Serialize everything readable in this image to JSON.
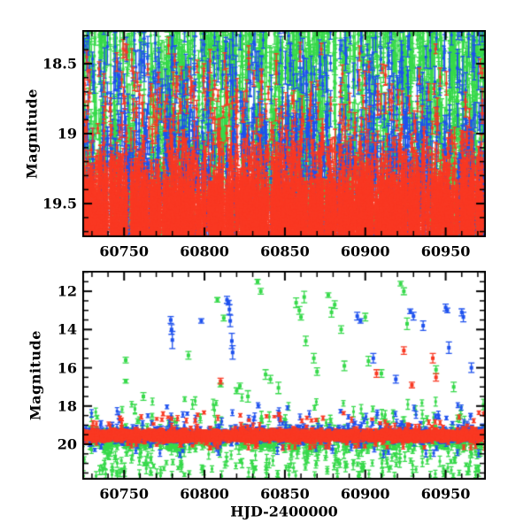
{
  "figure": {
    "background": "#ffffff",
    "frame_color": "#000000",
    "text_color": "#000000",
    "description": "Two-panel photometric light curve scatter plot; top panel is a zoom of the faint end of the bottom panel"
  },
  "chart_data": [
    {
      "type": "scatter",
      "panel": "top",
      "title": "",
      "xlabel": "",
      "ylabel": "Magnitude",
      "xlim": [
        60724,
        60975
      ],
      "ylim": [
        18.26,
        19.74
      ],
      "y_inverted": true,
      "grid": false,
      "legend": null,
      "x_ticks": [
        60750,
        60800,
        60850,
        60900,
        60950
      ],
      "x_minor_step": 10,
      "y_ticks": [
        18.5,
        19,
        19.5
      ],
      "y_minor_step": 0.1,
      "series": [
        {
          "name": "green-band",
          "color": "#36d94a",
          "generator": {
            "seed": 101,
            "n": 2600,
            "night_skip": 0.18,
            "mag_mean": 19.05,
            "mag_sigma": 0.38,
            "bright_frac": 0.3,
            "bright": [
              17.75,
              18.55
            ],
            "faint_frac": 0.05,
            "faint": [
              19.45,
              19.78
            ],
            "err": [
              0.05,
              0.16
            ]
          }
        },
        {
          "name": "blue-band",
          "color": "#1e51ee",
          "generator": {
            "seed": 202,
            "n": 1700,
            "night_skip": 0.3,
            "mag_mean": 19.28,
            "mag_sigma": 0.3,
            "bright_frac": 0.14,
            "bright": [
              17.9,
              18.7
            ],
            "faint_frac": 0.06,
            "faint": [
              19.5,
              19.78
            ],
            "err": [
              0.04,
              0.14
            ]
          }
        },
        {
          "name": "red-band",
          "color": "#f93822",
          "generator": {
            "seed": 303,
            "n": 6000,
            "night_skip": 0.1,
            "mag_mean": 19.58,
            "mag_sigma": 0.17,
            "bright_frac": 0.07,
            "bright": [
              18.35,
              19.25
            ],
            "faint_frac": 0,
            "faint": [
              0,
              0
            ],
            "err": [
              0.03,
              0.09
            ]
          }
        }
      ]
    },
    {
      "type": "scatter",
      "panel": "bottom",
      "title": "",
      "xlabel": "HJD-2400000",
      "ylabel": "Magnitude",
      "xlim": [
        60724,
        60975
      ],
      "ylim": [
        10.93,
        21.85
      ],
      "y_inverted": true,
      "grid": false,
      "legend": null,
      "x_ticks": [
        60750,
        60800,
        60850,
        60900,
        60950
      ],
      "x_minor_step": 10,
      "y_ticks": [
        12,
        14,
        16,
        18,
        20
      ],
      "y_minor_step": 0.5,
      "series": [
        {
          "name": "green-band",
          "color": "#36d94a",
          "generator": {
            "seed": 404,
            "n": 1300,
            "night_skip": 0.18,
            "mag_mean": 19.75,
            "mag_sigma": 0.27,
            "bright_frac": 0.055,
            "bright": [
              17.4,
              18.9
            ],
            "faint_frac": 0.14,
            "faint": [
              20.3,
              21.7
            ],
            "err": [
              0.08,
              0.28
            ]
          },
          "outliers": [
            [
              60751,
              15.6,
              0.15
            ],
            [
              60751,
              16.7,
              0.1
            ],
            [
              60762,
              17.5,
              0.2
            ],
            [
              60790,
              15.35,
              0.2
            ],
            [
              60808,
              12.45,
              0.12
            ],
            [
              60810,
              16.9,
              0.1
            ],
            [
              60812,
              13.4,
              0.15
            ],
            [
              60820,
              17.2,
              0.15
            ],
            [
              60822,
              16.95,
              0.15
            ],
            [
              60827,
              17.5,
              0.3
            ],
            [
              60833,
              11.5,
              0.12
            ],
            [
              60835,
              12.0,
              0.15
            ],
            [
              60838,
              16.35,
              0.25
            ],
            [
              60841,
              16.6,
              0.2
            ],
            [
              60846,
              17.05,
              0.3
            ],
            [
              60857,
              12.6,
              0.25
            ],
            [
              60859,
              13.0,
              0.2
            ],
            [
              60860,
              13.35,
              0.15
            ],
            [
              60862,
              12.3,
              0.3
            ],
            [
              60863,
              14.6,
              0.25
            ],
            [
              60868,
              15.5,
              0.25
            ],
            [
              60870,
              16.2,
              0.2
            ],
            [
              60877,
              12.2,
              0.12
            ],
            [
              60879,
              13.1,
              0.25
            ],
            [
              60881,
              12.7,
              0.2
            ],
            [
              60885,
              14.0,
              0.2
            ],
            [
              60887,
              15.9,
              0.25
            ],
            [
              60900,
              13.35,
              0.2
            ],
            [
              60902,
              15.65,
              0.25
            ],
            [
              60910,
              16.3,
              0.2
            ],
            [
              60922,
              11.6,
              0.12
            ],
            [
              60924,
              12.0,
              0.18
            ],
            [
              60926,
              13.7,
              0.3
            ],
            [
              60944,
              16.1,
              0.2
            ],
            [
              60955,
              17.0,
              0.25
            ]
          ]
        },
        {
          "name": "blue-band",
          "color": "#1e51ee",
          "generator": {
            "seed": 505,
            "n": 950,
            "night_skip": 0.3,
            "mag_mean": 19.5,
            "mag_sigma": 0.2,
            "bright_frac": 0.05,
            "bright": [
              17.9,
              18.9
            ],
            "faint_frac": 0.035,
            "faint": [
              20.1,
              20.55
            ],
            "err": [
              0.06,
              0.2
            ]
          },
          "outliers": [
            [
              60779,
              13.5,
              0.18
            ],
            [
              60779.5,
              14.0,
              0.25
            ],
            [
              60780,
              14.55,
              0.45
            ],
            [
              60798,
              13.55,
              0.12
            ],
            [
              60814,
              12.45,
              0.18
            ],
            [
              60815,
              12.6,
              0.12
            ],
            [
              60815.5,
              12.95,
              0.25
            ],
            [
              60816,
              13.55,
              0.3
            ],
            [
              60817,
              14.6,
              0.4
            ],
            [
              60817.5,
              15.2,
              0.35
            ],
            [
              60895,
              13.3,
              0.2
            ],
            [
              60897,
              13.55,
              0.12
            ],
            [
              60905,
              15.5,
              0.25
            ],
            [
              60919,
              16.6,
              0.2
            ],
            [
              60928,
              13.05,
              0.12
            ],
            [
              60930,
              13.3,
              0.2
            ],
            [
              60936,
              13.8,
              0.25
            ],
            [
              60950,
              12.85,
              0.18
            ],
            [
              60951,
              13.0,
              0.12
            ],
            [
              60952,
              14.95,
              0.3
            ],
            [
              60960,
              13.1,
              0.18
            ],
            [
              60961,
              13.35,
              0.25
            ],
            [
              60966,
              16.0,
              0.25
            ]
          ]
        },
        {
          "name": "red-band",
          "color": "#f93822",
          "generator": {
            "seed": 606,
            "n": 3500,
            "night_skip": 0.1,
            "mag_mean": 19.55,
            "mag_sigma": 0.12,
            "bright_frac": 0.018,
            "bright": [
              18.2,
              19.15
            ],
            "faint_frac": 0.012,
            "faint": [
              19.9,
              20.2
            ],
            "err": [
              0.05,
              0.14
            ]
          },
          "outliers": [
            [
              60810,
              16.7,
              0.15
            ],
            [
              60907,
              16.3,
              0.2
            ],
            [
              60924,
              15.1,
              0.2
            ],
            [
              60929,
              16.9,
              0.15
            ],
            [
              60942,
              15.5,
              0.25
            ],
            [
              60944,
              16.5,
              0.2
            ]
          ]
        }
      ]
    }
  ]
}
